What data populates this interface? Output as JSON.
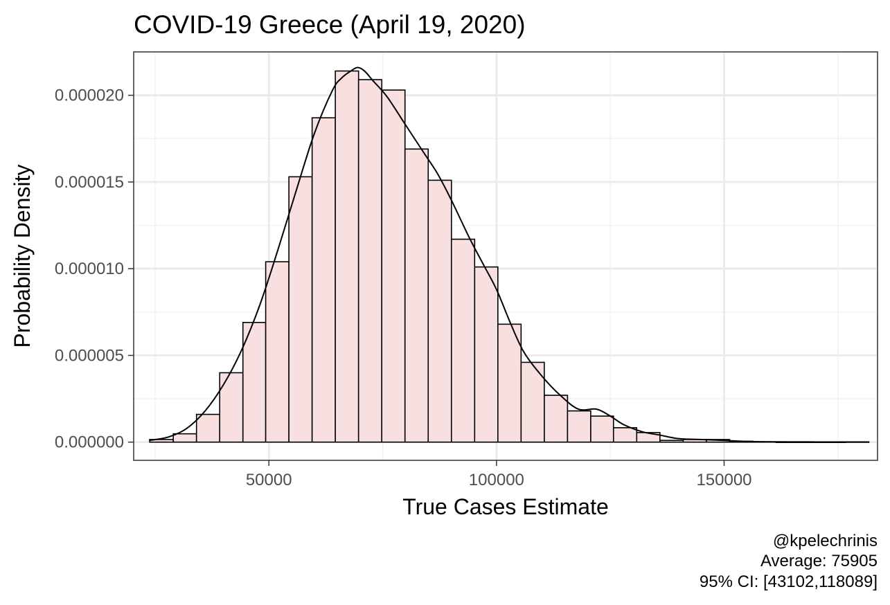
{
  "chart_data": {
    "type": "histogram",
    "title": "COVID-19 Greece (April 19, 2020)",
    "xlabel": "True Cases Estimate",
    "ylabel": "Probability Density",
    "xlim": [
      20300,
      183700
    ],
    "ylim": [
      -1.05e-06,
      2.25e-05
    ],
    "x_ticks": [
      50000,
      100000,
      150000
    ],
    "x_tick_labels": [
      "50000",
      "100000",
      "150000"
    ],
    "y_ticks": [
      0,
      5e-06,
      1e-05,
      1.5e-05,
      2e-05
    ],
    "y_tick_labels": [
      "0.000000",
      "0.000005",
      "0.000010",
      "0.000015",
      "0.000020"
    ],
    "grid": true,
    "bar_fill": "#f8e0e0",
    "bar_stroke": "#000000",
    "bins": [
      {
        "x0": 23800,
        "x1": 29000,
        "density": 1.5e-07
      },
      {
        "x0": 29000,
        "x1": 34100,
        "density": 4.8e-07
      },
      {
        "x0": 34100,
        "x1": 39200,
        "density": 1.6e-06
      },
      {
        "x0": 39200,
        "x1": 44300,
        "density": 4e-06
      },
      {
        "x0": 44300,
        "x1": 49300,
        "density": 6.9e-06
      },
      {
        "x0": 49300,
        "x1": 54400,
        "density": 1.04e-05
      },
      {
        "x0": 54400,
        "x1": 59500,
        "density": 1.53e-05
      },
      {
        "x0": 59500,
        "x1": 64600,
        "density": 1.87e-05
      },
      {
        "x0": 64600,
        "x1": 69700,
        "density": 2.14e-05
      },
      {
        "x0": 69700,
        "x1": 74800,
        "density": 2.09e-05
      },
      {
        "x0": 74800,
        "x1": 79900,
        "density": 2.03e-05
      },
      {
        "x0": 79900,
        "x1": 85000,
        "density": 1.69e-05
      },
      {
        "x0": 85000,
        "x1": 90100,
        "density": 1.51e-05
      },
      {
        "x0": 90100,
        "x1": 95200,
        "density": 1.17e-05
      },
      {
        "x0": 95200,
        "x1": 100300,
        "density": 1.01e-05
      },
      {
        "x0": 100300,
        "x1": 105400,
        "density": 6.8e-06
      },
      {
        "x0": 105400,
        "x1": 110500,
        "density": 4.6e-06
      },
      {
        "x0": 110500,
        "x1": 115600,
        "density": 2.7e-06
      },
      {
        "x0": 115600,
        "x1": 120700,
        "density": 1.8e-06
      },
      {
        "x0": 120700,
        "x1": 125700,
        "density": 1.5e-06
      },
      {
        "x0": 125700,
        "x1": 130800,
        "density": 8.3e-07
      },
      {
        "x0": 130800,
        "x1": 135900,
        "density": 5.5e-07
      },
      {
        "x0": 135900,
        "x1": 141000,
        "density": 1e-07
      },
      {
        "x0": 141000,
        "x1": 146100,
        "density": 1.5e-07
      },
      {
        "x0": 146100,
        "x1": 151200,
        "density": 1.5e-07
      },
      {
        "x0": 151200,
        "x1": 156300,
        "density": 5e-08
      },
      {
        "x0": 156300,
        "x1": 161400,
        "density": 2e-08
      },
      {
        "x0": 161400,
        "x1": 166500,
        "density": 0.0
      },
      {
        "x0": 166500,
        "x1": 171600,
        "density": 0.0
      },
      {
        "x0": 171600,
        "x1": 176700,
        "density": 0.0
      },
      {
        "x0": 176700,
        "x1": 181800,
        "density": 1e-08
      }
    ],
    "density_curve": {
      "x": [
        23800,
        28000,
        32000,
        36000,
        40000,
        44000,
        48000,
        52000,
        56000,
        60000,
        64000,
        66000,
        68000,
        69500,
        71000,
        73000,
        76000,
        80000,
        84000,
        87000,
        90000,
        94000,
        97000,
        100000,
        103000,
        106000,
        110000,
        114000,
        118000,
        122000,
        125000,
        128000,
        132000,
        136000,
        140000,
        145000,
        150000,
        155000,
        160000,
        170000,
        181800
      ],
      "y": [
        1e-07,
        3e-07,
        8e-07,
        1.8e-06,
        3.3e-06,
        5.3e-06,
        7.9e-06,
        1.11e-05,
        1.45e-05,
        1.78e-05,
        2.03e-05,
        2.1e-05,
        2.14e-05,
        2.16e-05,
        2.14e-05,
        2.08e-05,
        1.99e-05,
        1.83e-05,
        1.67e-05,
        1.55e-05,
        1.4e-05,
        1.18e-05,
        1.03e-05,
        8.8e-06,
        6.9e-06,
        5.2e-06,
        3.8e-06,
        2.7e-06,
        1.9e-06,
        1.9e-06,
        1.5e-06,
        1e-06,
        6e-07,
        4e-07,
        2e-07,
        1.5e-07,
        1e-07,
        4e-08,
        2e-08,
        1e-08,
        1e-08
      ]
    },
    "caption_lines": [
      "@kpelechrinis",
      "Average: 75905",
      "95% CI: [43102,118089]"
    ]
  }
}
